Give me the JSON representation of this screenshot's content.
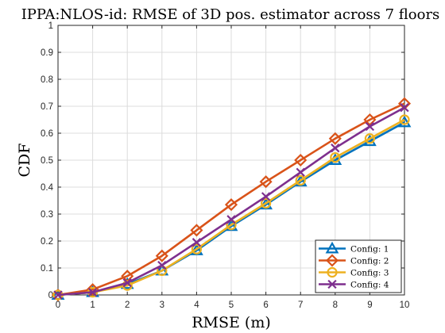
{
  "chart_data": {
    "type": "line",
    "title": "IPPA:NLOS-id: RMSE of 3D pos. estimator across 7 floors",
    "xlabel": "RMSE (m)",
    "ylabel": "CDF",
    "xlim": [
      0,
      10
    ],
    "ylim": [
      0,
      1
    ],
    "xticks": [
      "0",
      "1",
      "2",
      "3",
      "4",
      "5",
      "6",
      "7",
      "8",
      "9",
      "10"
    ],
    "yticks": [
      "0",
      "0.1",
      "0.2",
      "0.3",
      "0.4",
      "0.5",
      "0.6",
      "0.7",
      "0.8",
      "0.9",
      "1"
    ],
    "grid": true,
    "legend_position": "bottom-right",
    "x": [
      0,
      1,
      2,
      3,
      4,
      5,
      6,
      7,
      8,
      9,
      10
    ],
    "series": [
      {
        "name": "Config: 1",
        "marker": "triangle",
        "color": "#0072BD",
        "values": [
          0.0,
          0.01,
          0.04,
          0.09,
          0.165,
          0.255,
          0.335,
          0.42,
          0.5,
          0.57,
          0.64
        ]
      },
      {
        "name": "Config: 2",
        "marker": "diamond",
        "color": "#D95319",
        "values": [
          0.0,
          0.02,
          0.07,
          0.145,
          0.24,
          0.335,
          0.42,
          0.5,
          0.58,
          0.65,
          0.71
        ]
      },
      {
        "name": "Config: 3",
        "marker": "circle",
        "color": "#EDB120",
        "values": [
          0.0,
          0.01,
          0.035,
          0.09,
          0.17,
          0.26,
          0.34,
          0.425,
          0.51,
          0.58,
          0.65
        ]
      },
      {
        "name": "Config: 4",
        "marker": "x",
        "color": "#7E2F8E",
        "values": [
          0.0,
          0.01,
          0.045,
          0.11,
          0.195,
          0.28,
          0.365,
          0.455,
          0.545,
          0.625,
          0.695
        ]
      }
    ]
  }
}
